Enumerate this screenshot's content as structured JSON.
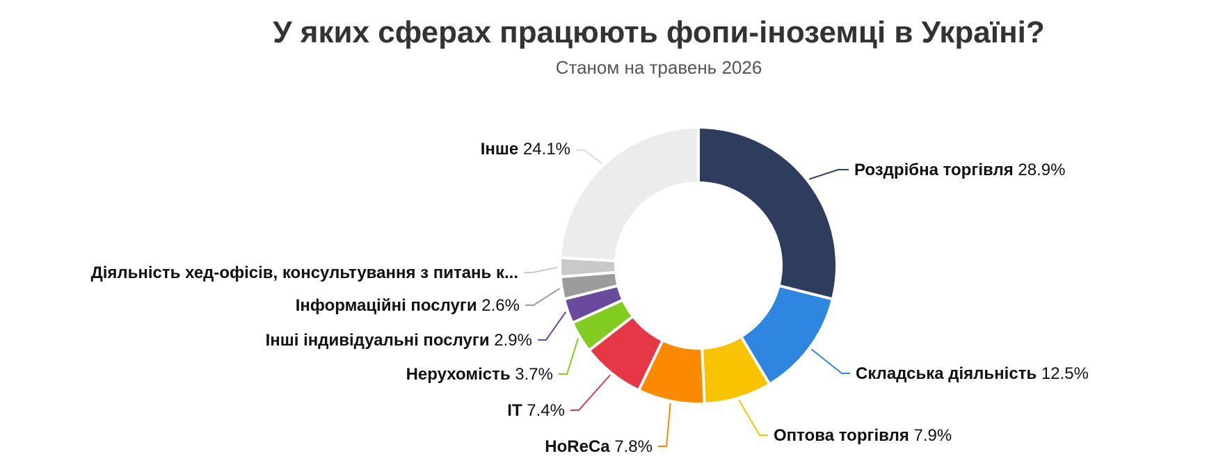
{
  "title": "У яких сферах працюють фопи-іноземці в Україні?",
  "subtitle": "Станом на травень 2026",
  "chart_data": {
    "type": "pie",
    "variant": "donut",
    "title": "У яких сферах працюють фопи-іноземці в Україні?",
    "subtitle": "Станом на травень 2026",
    "unit": "%",
    "slices": [
      {
        "label": "Роздрібна торгівля",
        "value": 28.9,
        "value_label": "28.9%",
        "color": "#2e3d5e"
      },
      {
        "label": "Складська діяльність",
        "value": 12.5,
        "value_label": "12.5%",
        "color": "#2f86e0"
      },
      {
        "label": "Оптова торгівля",
        "value": 7.9,
        "value_label": "7.9%",
        "color": "#f8c300"
      },
      {
        "label": "HoReCa",
        "value": 7.8,
        "value_label": "7.8%",
        "color": "#fb8a00"
      },
      {
        "label": "IT",
        "value": 7.4,
        "value_label": "7.4%",
        "color": "#e53745"
      },
      {
        "label": "Нерухомість",
        "value": 3.7,
        "value_label": "3.7%",
        "color": "#82cc22"
      },
      {
        "label": "Інші індивідуальні послуги",
        "value": 2.9,
        "value_label": "2.9%",
        "color": "#6a4a9c"
      },
      {
        "label": "Інформаційні послуги",
        "value": 2.6,
        "value_label": "2.6%",
        "color": "#9c9c9c"
      },
      {
        "label": "Діяльність хед-офісів, консультування з питань к...",
        "value": 2.2,
        "value_label": "",
        "color": "#c9c9c9"
      },
      {
        "label": "Інше",
        "value": 24.1,
        "value_label": "24.1%",
        "color": "#ececec"
      }
    ]
  }
}
